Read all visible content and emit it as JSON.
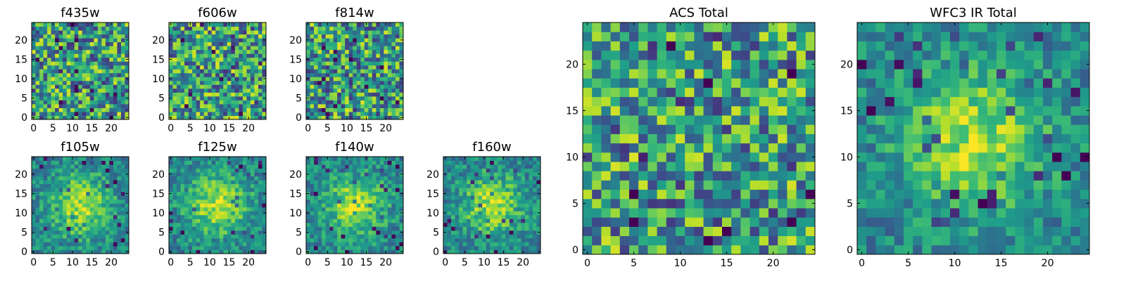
{
  "chart_data": [
    {
      "type": "heatmap",
      "title": "f435w",
      "grid": [
        25,
        25
      ],
      "xlim": [
        0,
        24
      ],
      "ylim": [
        0,
        24
      ],
      "xticks": [
        0,
        5,
        10,
        15,
        20
      ],
      "yticks": [
        0,
        5,
        10,
        15,
        20
      ],
      "colormap": "viridis",
      "pattern": "uniform-noise"
    },
    {
      "type": "heatmap",
      "title": "f606w",
      "grid": [
        25,
        25
      ],
      "xlim": [
        0,
        24
      ],
      "ylim": [
        0,
        24
      ],
      "xticks": [
        0,
        5,
        10,
        15,
        20
      ],
      "yticks": [
        0,
        5,
        10,
        15,
        20
      ],
      "colormap": "viridis",
      "pattern": "uniform-noise"
    },
    {
      "type": "heatmap",
      "title": "f814w",
      "grid": [
        25,
        25
      ],
      "xlim": [
        0,
        24
      ],
      "ylim": [
        0,
        24
      ],
      "xticks": [
        0,
        5,
        10,
        15,
        20
      ],
      "yticks": [
        0,
        5,
        10,
        15,
        20
      ],
      "colormap": "viridis",
      "pattern": "uniform-noise"
    },
    {
      "type": "heatmap",
      "title": "f105w",
      "grid": [
        25,
        25
      ],
      "xlim": [
        0,
        24
      ],
      "ylim": [
        0,
        24
      ],
      "xticks": [
        0,
        5,
        10,
        15,
        20
      ],
      "yticks": [
        0,
        5,
        10,
        15,
        20
      ],
      "colormap": "viridis",
      "pattern": "central-source"
    },
    {
      "type": "heatmap",
      "title": "f125w",
      "grid": [
        25,
        25
      ],
      "xlim": [
        0,
        24
      ],
      "ylim": [
        0,
        24
      ],
      "xticks": [
        0,
        5,
        10,
        15,
        20
      ],
      "yticks": [
        0,
        5,
        10,
        15,
        20
      ],
      "colormap": "viridis",
      "pattern": "central-source"
    },
    {
      "type": "heatmap",
      "title": "f140w",
      "grid": [
        25,
        25
      ],
      "xlim": [
        0,
        24
      ],
      "ylim": [
        0,
        24
      ],
      "xticks": [
        0,
        5,
        10,
        15,
        20
      ],
      "yticks": [
        0,
        5,
        10,
        15,
        20
      ],
      "colormap": "viridis",
      "pattern": "central-source"
    },
    {
      "type": "heatmap",
      "title": "f160w",
      "grid": [
        25,
        25
      ],
      "xlim": [
        0,
        24
      ],
      "ylim": [
        0,
        24
      ],
      "xticks": [
        0,
        5,
        10,
        15,
        20
      ],
      "yticks": [
        0,
        5,
        10,
        15,
        20
      ],
      "colormap": "viridis",
      "pattern": "central-source"
    },
    {
      "type": "heatmap",
      "title": "ACS Total",
      "grid": [
        25,
        25
      ],
      "xlim": [
        0,
        24
      ],
      "ylim": [
        0,
        24
      ],
      "xticks": [
        0,
        5,
        10,
        15,
        20
      ],
      "yticks": [
        0,
        5,
        10,
        15,
        20
      ],
      "colormap": "viridis",
      "pattern": "uniform-noise"
    },
    {
      "type": "heatmap",
      "title": "WFC3 IR Total",
      "grid": [
        25,
        25
      ],
      "xlim": [
        0,
        24
      ],
      "ylim": [
        0,
        24
      ],
      "xticks": [
        0,
        5,
        10,
        15,
        20
      ],
      "yticks": [
        0,
        5,
        10,
        15,
        20
      ],
      "colormap": "viridis",
      "pattern": "central-source"
    }
  ]
}
